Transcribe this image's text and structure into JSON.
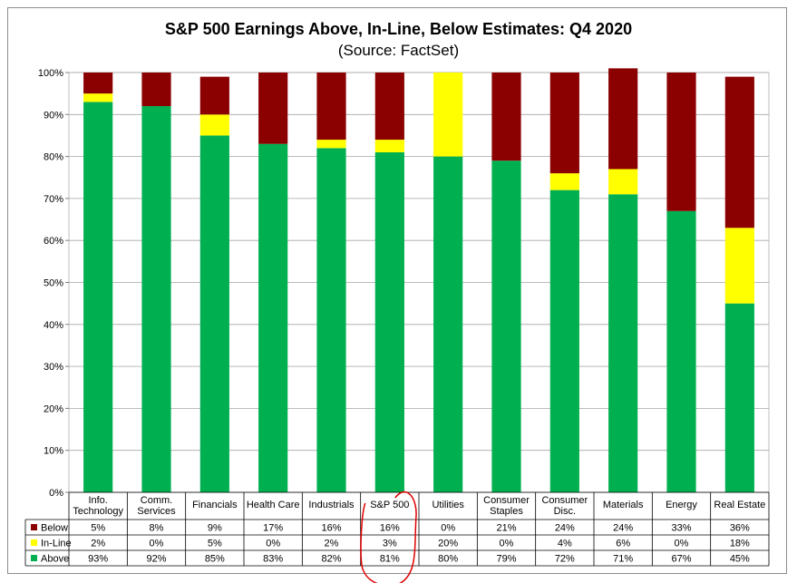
{
  "chart_data": {
    "type": "bar",
    "stacked": true,
    "title": "S&P 500 Earnings Above, In-Line, Below Estimates: Q4 2020",
    "subtitle": "(Source: FactSet)",
    "categories": [
      [
        "Info.",
        "Technology"
      ],
      [
        "Comm.",
        "Services"
      ],
      [
        "Financials"
      ],
      [
        "Health Care"
      ],
      [
        "Industrials"
      ],
      [
        "S&P 500"
      ],
      [
        "Utilities"
      ],
      [
        "Consumer",
        "Staples"
      ],
      [
        "Consumer",
        "Disc."
      ],
      [
        "Materials"
      ],
      [
        "Energy"
      ],
      [
        "Real Estate"
      ]
    ],
    "series": [
      {
        "name": "Below",
        "color": "#8b0000",
        "values": [
          5,
          8,
          9,
          17,
          16,
          16,
          0,
          21,
          24,
          24,
          33,
          36
        ]
      },
      {
        "name": "In-Line",
        "color": "#ffff00",
        "values": [
          2,
          0,
          5,
          0,
          2,
          3,
          20,
          0,
          4,
          6,
          0,
          18
        ]
      },
      {
        "name": "Above",
        "color": "#00b050",
        "values": [
          93,
          92,
          85,
          83,
          82,
          81,
          80,
          79,
          72,
          71,
          67,
          45
        ]
      }
    ],
    "ylim": [
      0,
      100
    ],
    "yticks": [
      "0%",
      "10%",
      "20%",
      "30%",
      "40%",
      "50%",
      "60%",
      "70%",
      "80%",
      "90%",
      "100%"
    ],
    "grid": true,
    "data_table": true,
    "highlight_category": "S&P 500"
  }
}
